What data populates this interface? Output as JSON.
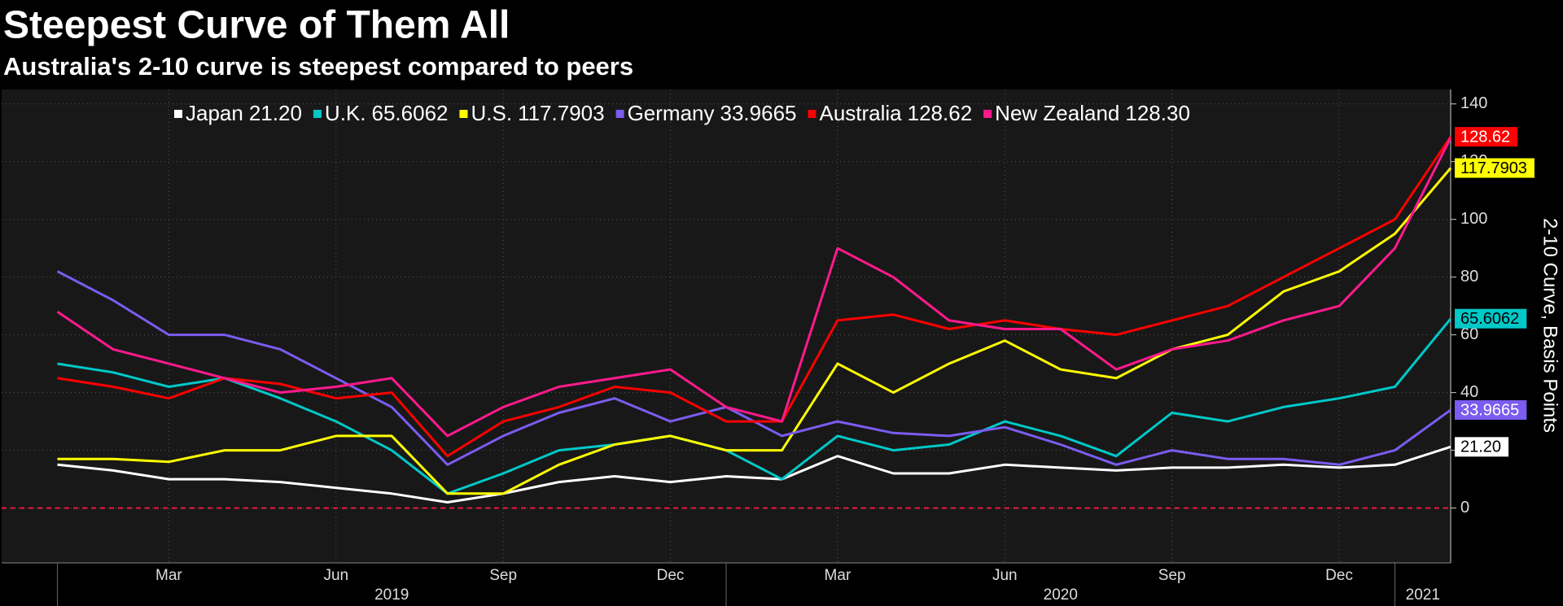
{
  "chart_data": {
    "type": "line",
    "title": "Steepest Curve of Them All",
    "subtitle": "Australia's 2-10 curve is steepest compared to peers",
    "y_label": "2-10 Curve, Basis Points",
    "x": [
      "2019-01",
      "2019-02",
      "2019-03",
      "2019-04",
      "2019-05",
      "2019-06",
      "2019-07",
      "2019-08",
      "2019-09",
      "2019-10",
      "2019-11",
      "2019-12",
      "2020-01",
      "2020-02",
      "2020-03",
      "2020-04",
      "2020-05",
      "2020-06",
      "2020-07",
      "2020-08",
      "2020-09",
      "2020-10",
      "2020-11",
      "2020-12",
      "2021-01",
      "2021-02"
    ],
    "xlim": [
      "2018-12",
      "2021-02"
    ],
    "xticks": [
      {
        "value": "2019-03",
        "label": "Mar"
      },
      {
        "value": "2019-06",
        "label": "Jun"
      },
      {
        "value": "2019-09",
        "label": "Sep"
      },
      {
        "value": "2019-12",
        "label": "Dec"
      },
      {
        "value": "2020-03",
        "label": "Mar"
      },
      {
        "value": "2020-06",
        "label": "Jun"
      },
      {
        "value": "2020-09",
        "label": "Sep"
      },
      {
        "value": "2020-12",
        "label": "Dec"
      }
    ],
    "year_labels": [
      "2019",
      "2020",
      "2021"
    ],
    "ylim": [
      -19,
      145
    ],
    "yticks": [
      0,
      20,
      40,
      60,
      80,
      100,
      120,
      140
    ],
    "grid": true,
    "zero_line": true,
    "zero_line_color": "#e8193c",
    "series": [
      {
        "name": "Japan",
        "last_label": "21.20",
        "color": "#ffffff",
        "show_tag": true,
        "tag_text_color": "#000000",
        "values": [
          15,
          13,
          10,
          10,
          9,
          7,
          5,
          2,
          5,
          9,
          11,
          9,
          11,
          10,
          18,
          12,
          12,
          15,
          14,
          13,
          14,
          14,
          15,
          14,
          15,
          21.2
        ]
      },
      {
        "name": "U.K.",
        "last_label": "65.6062",
        "color": "#00c8c8",
        "show_tag": true,
        "tag_text_color": "#000000",
        "values": [
          50,
          47,
          42,
          45,
          38,
          30,
          20,
          5,
          12,
          20,
          22,
          25,
          20,
          10,
          25,
          20,
          22,
          30,
          25,
          18,
          33,
          30,
          35,
          38,
          42,
          65.6062
        ]
      },
      {
        "name": "U.S.",
        "last_label": "117.7903",
        "color": "#ffff00",
        "show_tag": true,
        "tag_text_color": "#000000",
        "values": [
          17,
          17,
          16,
          20,
          20,
          25,
          25,
          5,
          5,
          15,
          22,
          25,
          20,
          20,
          50,
          40,
          50,
          58,
          48,
          45,
          55,
          60,
          75,
          82,
          95,
          117.7903
        ]
      },
      {
        "name": "Germany",
        "last_label": "33.9665",
        "color": "#7b5cf0",
        "show_tag": true,
        "tag_text_color": "#ffffff",
        "values": [
          82,
          72,
          60,
          60,
          55,
          45,
          35,
          15,
          25,
          33,
          38,
          30,
          35,
          25,
          30,
          26,
          25,
          28,
          22,
          15,
          20,
          17,
          17,
          15,
          20,
          33.9665
        ]
      },
      {
        "name": "Australia",
        "last_label": "128.62",
        "color": "#ff0000",
        "show_tag": true,
        "tag_text_color": "#ffffff",
        "values": [
          45,
          42,
          38,
          45,
          43,
          38,
          40,
          18,
          30,
          35,
          42,
          40,
          30,
          30,
          65,
          67,
          62,
          65,
          62,
          60,
          65,
          70,
          80,
          90,
          100,
          128.62
        ]
      },
      {
        "name": "New Zealand",
        "last_label": "128.30",
        "color": "#ff1a8c",
        "show_tag": false,
        "tag_text_color": "#ffffff",
        "values": [
          68,
          55,
          50,
          45,
          40,
          42,
          45,
          25,
          35,
          42,
          45,
          48,
          35,
          30,
          90,
          80,
          65,
          62,
          62,
          48,
          55,
          58,
          65,
          70,
          90,
          128.3
        ]
      }
    ]
  }
}
